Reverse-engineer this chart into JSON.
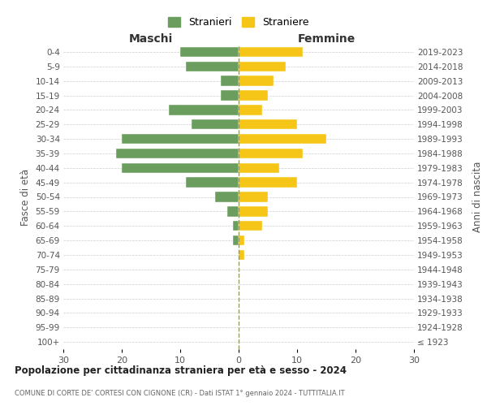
{
  "age_groups": [
    "0-4",
    "5-9",
    "10-14",
    "15-19",
    "20-24",
    "25-29",
    "30-34",
    "35-39",
    "40-44",
    "45-49",
    "50-54",
    "55-59",
    "60-64",
    "65-69",
    "70-74",
    "75-79",
    "80-84",
    "85-89",
    "90-94",
    "95-99",
    "100+"
  ],
  "birth_years": [
    "2019-2023",
    "2014-2018",
    "2009-2013",
    "2004-2008",
    "1999-2003",
    "1994-1998",
    "1989-1993",
    "1984-1988",
    "1979-1983",
    "1974-1978",
    "1969-1973",
    "1964-1968",
    "1959-1963",
    "1954-1958",
    "1949-1953",
    "1944-1948",
    "1939-1943",
    "1934-1938",
    "1929-1933",
    "1924-1928",
    "≤ 1923"
  ],
  "maschi": [
    10,
    9,
    3,
    3,
    12,
    8,
    20,
    21,
    20,
    9,
    4,
    2,
    1,
    1,
    0,
    0,
    0,
    0,
    0,
    0,
    0
  ],
  "femmine": [
    11,
    8,
    6,
    5,
    4,
    10,
    15,
    11,
    7,
    10,
    5,
    5,
    4,
    1,
    1,
    0,
    0,
    0,
    0,
    0,
    0
  ],
  "color_maschi": "#6b9e5e",
  "color_femmine": "#f5c518",
  "title": "Popolazione per cittadinanza straniera per età e sesso - 2024",
  "subtitle": "COMUNE DI CORTE DE' CORTESI CON CIGNONE (CR) - Dati ISTAT 1° gennaio 2024 - TUTTITALIA.IT",
  "legend_maschi": "Stranieri",
  "legend_femmine": "Straniere",
  "label_left": "Maschi",
  "label_right": "Femmine",
  "ylabel_left": "Fasce di età",
  "ylabel_right": "Anni di nascita",
  "xlim": 30,
  "background_color": "#ffffff",
  "grid_color": "#cccccc"
}
